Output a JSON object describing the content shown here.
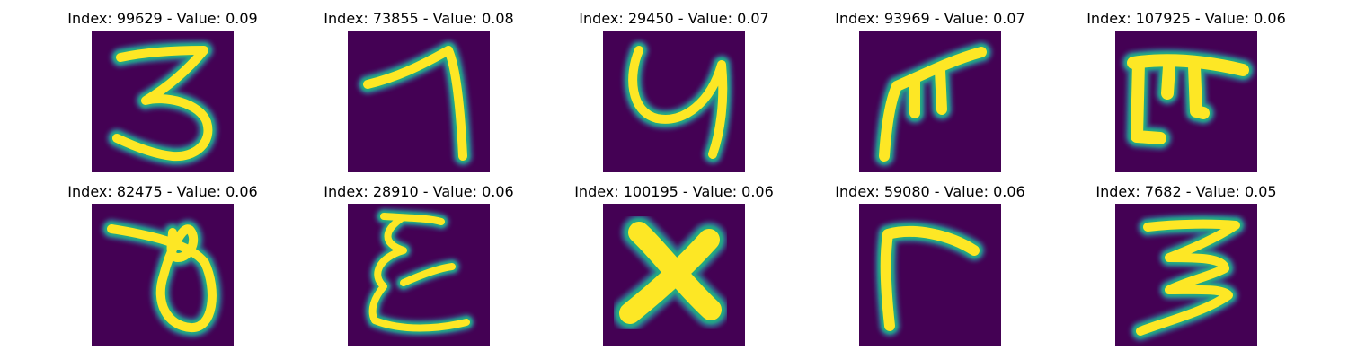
{
  "panels": [
    {
      "title": "Index: 99629 - Value: 0.09",
      "glyph": "digit-three"
    },
    {
      "title": "Index: 73855 - Value: 0.08",
      "glyph": "digit-seven"
    },
    {
      "title": "Index: 29450 - Value: 0.07",
      "glyph": "letter-y"
    },
    {
      "title": "Index: 93969 - Value: 0.07",
      "glyph": "pi-like-stroke"
    },
    {
      "title": "Index: 107925 - Value: 0.06",
      "glyph": "pi-like-block"
    },
    {
      "title": "Index: 82475 - Value: 0.06",
      "glyph": "digit-eight"
    },
    {
      "title": "Index: 28910 - Value: 0.06",
      "glyph": "letter-e"
    },
    {
      "title": "Index: 100195 - Value: 0.06",
      "glyph": "letter-x"
    },
    {
      "title": "Index: 59080 - Value: 0.06",
      "glyph": "letter-r"
    },
    {
      "title": "Index: 7682 - Value: 0.05",
      "glyph": "digit-three-variant"
    }
  ],
  "colors": {
    "background": "#440154",
    "stroke_core": "#fde725",
    "stroke_edge": "#22a884",
    "stroke_halo": "#31688e"
  }
}
